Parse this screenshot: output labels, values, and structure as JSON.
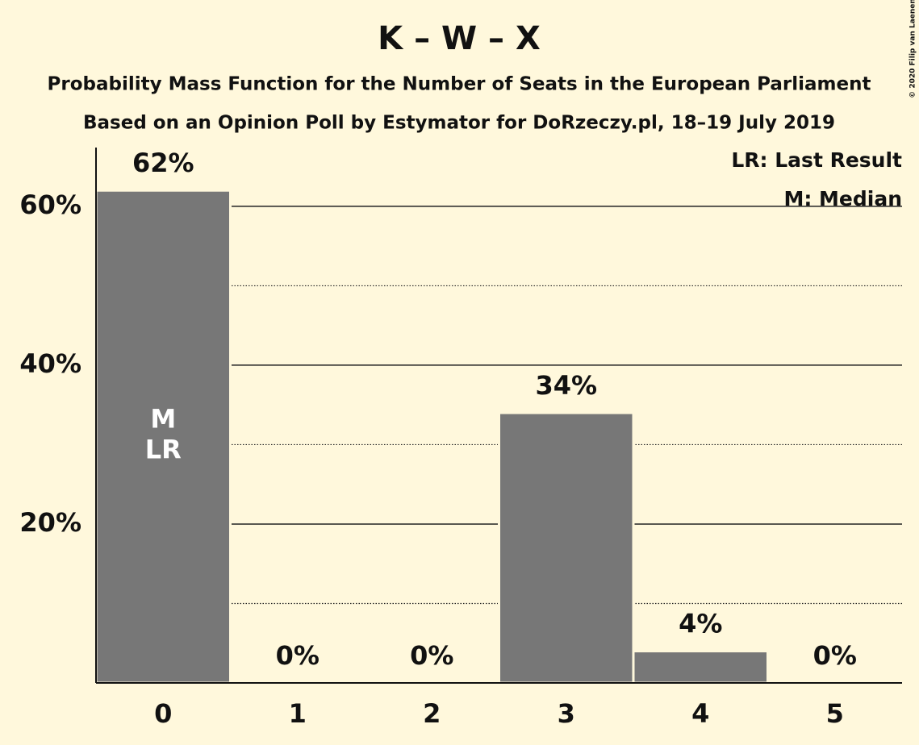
{
  "chart_data": {
    "type": "bar",
    "title": "K – W – X",
    "subtitle": "Probability Mass Function for the Number of Seats in the European Parliament",
    "subtitle2": "Based on an Opinion Poll by Estymator for DoRzeczy.pl, 18–19 July 2019",
    "credit": "© 2020 Filip van Laenen",
    "categories": [
      "0",
      "1",
      "2",
      "3",
      "4",
      "5"
    ],
    "values": [
      62,
      0,
      0,
      34,
      4,
      0
    ],
    "value_labels": [
      "62%",
      "0%",
      "0%",
      "34%",
      "4%",
      "0%"
    ],
    "color": "#777777",
    "ylim": [
      0,
      67.4
    ],
    "yticks": [
      {
        "value": 20,
        "label": "20%"
      },
      {
        "value": 40,
        "label": "40%"
      },
      {
        "value": 60,
        "label": "60%"
      }
    ],
    "minor_yticks": [
      10,
      30,
      50
    ],
    "grid": true,
    "median": "0",
    "median_label": "M",
    "last_result": "0",
    "last_result_label": "LR",
    "legend": [
      "LR: Last Result",
      "M: Median"
    ],
    "legend_position": "top-right"
  }
}
